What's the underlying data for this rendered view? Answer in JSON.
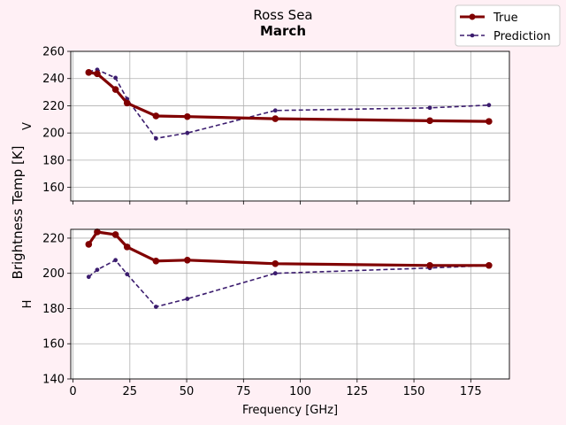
{
  "chart_data": {
    "type": "line",
    "title": "Ross Sea",
    "subtitle": "March",
    "ylabel": "Brightness Temp [K]",
    "xlabel": "Frequency [GHz]",
    "xlim": [
      -1,
      192
    ],
    "xticks": [
      0,
      25,
      50,
      75,
      100,
      125,
      150,
      175
    ],
    "grid": true,
    "legend": {
      "placement": "top-right",
      "entries": [
        "True",
        "Prediction"
      ]
    },
    "colors": {
      "true": "#800000",
      "prediction": "#3b1c6e"
    },
    "x": [
      6.9,
      10.65,
      18.7,
      23.8,
      36.5,
      50.3,
      89.0,
      157.0,
      183.0
    ],
    "panels": [
      {
        "label": "V",
        "ylim": [
          150,
          260
        ],
        "yticks": [
          160,
          180,
          200,
          220,
          240,
          260
        ],
        "series": [
          {
            "name": "True",
            "values": [
              244.5,
              243.5,
              232,
              222,
              212.5,
              212,
              210.5,
              209,
              208.5
            ]
          },
          {
            "name": "Prediction",
            "values": [
              245,
              246.5,
              240.5,
              225,
              196,
              200,
              216.5,
              218.5,
              220.5
            ]
          }
        ]
      },
      {
        "label": "H",
        "ylim": [
          140,
          225
        ],
        "yticks": [
          140,
          160,
          180,
          200,
          220
        ],
        "series": [
          {
            "name": "True",
            "values": [
              216.5,
              223.5,
              222,
              215,
              207,
              207.5,
              205.5,
              204.5,
              204.5
            ]
          },
          {
            "name": "Prediction",
            "values": [
              198,
              202,
              207.5,
              199.5,
              181,
              185.5,
              200,
              203,
              204.5
            ]
          }
        ]
      }
    ]
  }
}
